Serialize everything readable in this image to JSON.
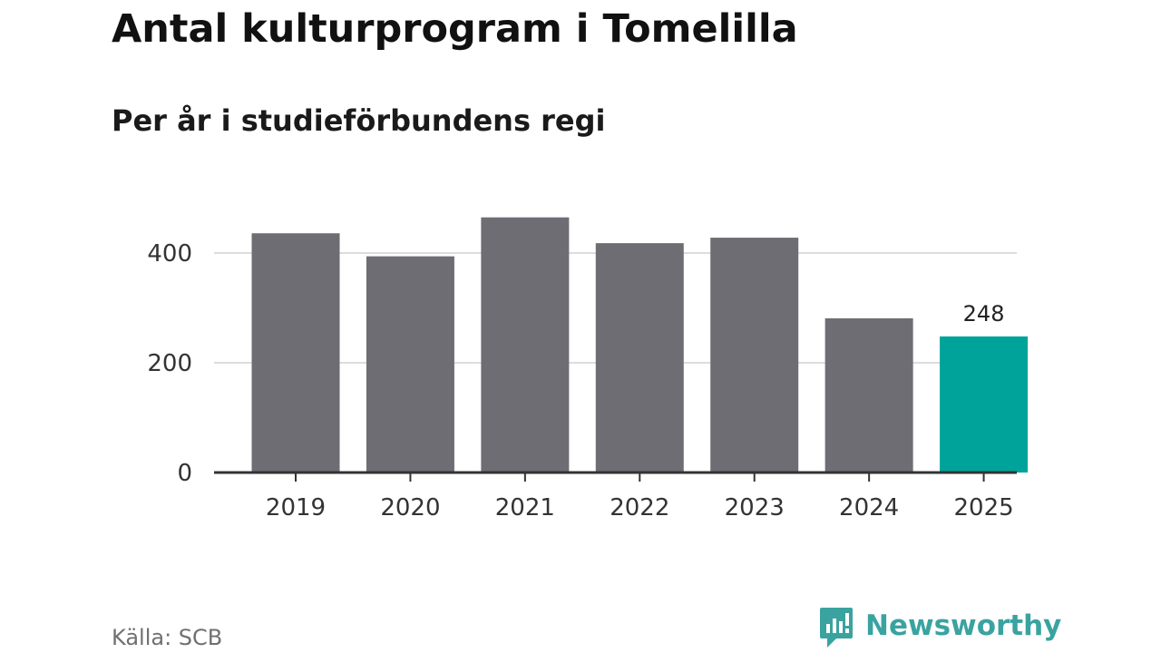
{
  "header": {
    "title": "Antal kulturprogram i Tomelilla",
    "subtitle": "Per år i studieförbundens regi"
  },
  "footer": {
    "source": "Källa: SCB",
    "brand": "Newsworthy",
    "brand_icon": "newsworthy-chart-bubble-icon"
  },
  "colors": {
    "bar_default": "#6e6d74",
    "bar_highlight": "#00a39a",
    "gridline": "#dcdcdc",
    "axis": "#333333",
    "brand": "#3aa3a0"
  },
  "chart_data": {
    "type": "bar",
    "categories": [
      "2019",
      "2020",
      "2021",
      "2022",
      "2023",
      "2024",
      "2025"
    ],
    "values": [
      436,
      394,
      465,
      418,
      428,
      281,
      248
    ],
    "highlight_index": 6,
    "data_labels": [
      {
        "index": 6,
        "text": "248"
      }
    ],
    "title": "Antal kulturprogram i Tomelilla",
    "subtitle": "Per år i studieförbundens regi",
    "xlabel": "",
    "ylabel": "",
    "ylim": [
      0,
      500
    ],
    "yticks": [
      0,
      200,
      400
    ],
    "ytick_labels": [
      "0",
      "200",
      "400"
    ],
    "grid": true,
    "legend": "none"
  }
}
